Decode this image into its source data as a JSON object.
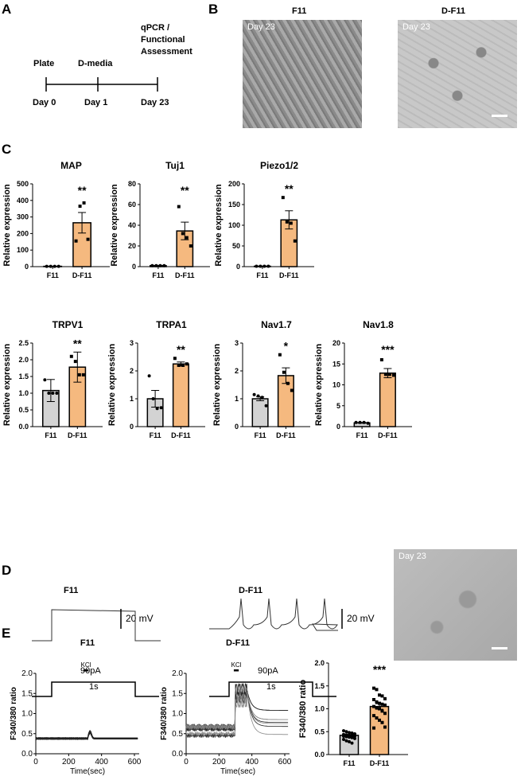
{
  "panels": {
    "a": "A",
    "b": "B",
    "c": "C",
    "d": "D",
    "e": "E"
  },
  "timeline": {
    "events": [
      "Plate",
      "D-media"
    ],
    "final_event": [
      "qPCR /",
      "Functional",
      "Assessment"
    ],
    "days": [
      "Day 0",
      "Day 1",
      "Day 23"
    ]
  },
  "micrographs": {
    "f11_title": "F11",
    "df11_title": "D-F11",
    "day_label": "Day 23"
  },
  "colors": {
    "f11_bar": "#d3d3d3",
    "df11_bar": "#f5b97f",
    "axis": "#000000"
  },
  "chart_data": [
    {
      "type": "bar",
      "title": "MAP",
      "ylabel": "Relative expression",
      "categories": [
        "F11",
        "D-F11"
      ],
      "ylim": [
        0,
        500
      ],
      "yticks": [
        "0",
        "100",
        "200",
        "300",
        "400",
        "500"
      ],
      "values": [
        2,
        265
      ],
      "errors": [
        0.5,
        62
      ],
      "points": [
        [
          2,
          2,
          2,
          2
        ],
        [
          155,
          365,
          385,
          165
        ]
      ],
      "significance": "**"
    },
    {
      "type": "bar",
      "title": "Tuj1",
      "ylabel": "Relative expression",
      "categories": [
        "F11",
        "D-F11"
      ],
      "ylim": [
        0,
        80
      ],
      "yticks": [
        "0",
        "20",
        "40",
        "60",
        "80"
      ],
      "values": [
        1,
        34.5
      ],
      "errors": [
        0.2,
        8.5
      ],
      "points": [
        [
          1,
          1,
          1,
          1
        ],
        [
          58,
          32,
          28,
          20
        ]
      ],
      "significance": "**"
    },
    {
      "type": "bar",
      "title": "Piezo1/2",
      "ylabel": "Relative expression",
      "categories": [
        "F11",
        "D-F11"
      ],
      "ylim": [
        0,
        200
      ],
      "yticks": [
        "0",
        "50",
        "100",
        "150",
        "200"
      ],
      "values": [
        1,
        113
      ],
      "errors": [
        0.3,
        22
      ],
      "points": [
        [
          1,
          1,
          1,
          1
        ],
        [
          167,
          108,
          105,
          62
        ]
      ],
      "significance": "**"
    },
    {
      "type": "bar",
      "title": "TRPV1",
      "ylabel": "Relative expression",
      "categories": [
        "F11",
        "D-F11"
      ],
      "ylim": [
        0,
        2.5
      ],
      "yticks": [
        "0.0",
        "0.5",
        "1.0",
        "1.5",
        "2.0",
        "2.5"
      ],
      "values": [
        1.08,
        1.78
      ],
      "errors": [
        0.33,
        0.45
      ],
      "points": [
        [
          1.4,
          1.0,
          1.0,
          1.0
        ],
        [
          2.1,
          1.95,
          1.55,
          1.55
        ]
      ],
      "significance": "**"
    },
    {
      "type": "bar",
      "title": "TRPA1",
      "ylabel": "Relative expression",
      "categories": [
        "F11",
        "D-F11"
      ],
      "ylim": [
        0,
        3
      ],
      "yticks": [
        "0",
        "1",
        "2",
        "3"
      ],
      "values": [
        1.0,
        2.25
      ],
      "errors": [
        0.3,
        0.07
      ],
      "points": [
        [
          1.82,
          1.0,
          0.65,
          0.68
        ],
        [
          2.45,
          2.2,
          2.2,
          2.25
        ]
      ],
      "significance": "**"
    },
    {
      "type": "bar",
      "title": "Nav1.7",
      "ylabel": "Relative expression",
      "categories": [
        "F11",
        "D-F11"
      ],
      "ylim": [
        0,
        3
      ],
      "yticks": [
        "0",
        "1",
        "2",
        "3"
      ],
      "values": [
        1.0,
        1.83
      ],
      "errors": [
        0.07,
        0.28
      ],
      "points": [
        [
          1.15,
          1.1,
          1.05,
          0.75
        ],
        [
          2.58,
          1.95,
          1.55,
          1.3
        ]
      ],
      "significance": "*"
    },
    {
      "type": "bar",
      "title": "Nav1.8",
      "ylabel": "Relative expression",
      "categories": [
        "F11",
        "D-F11"
      ],
      "ylim": [
        0,
        20
      ],
      "yticks": [
        "0",
        "5",
        "10",
        "15",
        "20"
      ],
      "values": [
        0.9,
        12.8
      ],
      "errors": [
        0.1,
        1.1
      ],
      "points": [
        [
          1.0,
          1.0,
          1.0,
          0.8
        ],
        [
          16,
          12.5,
          12.5,
          12.3
        ]
      ],
      "significance": "***"
    },
    {
      "type": "line",
      "title": "F11",
      "xlabel": "Time(sec)",
      "ylabel": "F340/380 ratio",
      "xlim": [
        0,
        620
      ],
      "ylim": [
        0,
        2.0
      ],
      "xticks": [
        "0",
        "200",
        "400",
        "600"
      ],
      "yticks": [
        "0.0",
        "0.5",
        "1.0",
        "1.5",
        "2.0"
      ],
      "annotation": "KCl",
      "stimulus_time": [
        290,
        320
      ],
      "baseline": 0.38,
      "peak": 0.6,
      "peak_time": 330
    },
    {
      "type": "line",
      "title": "D-F11",
      "xlabel": "Time(sec)",
      "ylabel": "F340/380 ratio",
      "xlim": [
        0,
        620
      ],
      "ylim": [
        0,
        2.0
      ],
      "xticks": [
        "0",
        "200",
        "400",
        "600"
      ],
      "yticks": [
        "0.0",
        "0.5",
        "1.0",
        "1.5",
        "2.0"
      ],
      "annotation": "KCl",
      "stimulus_time": [
        290,
        320
      ],
      "baseline": 0.65,
      "peak": 1.6,
      "peak_time": 310,
      "final_values": [
        1.08,
        0.85,
        0.78,
        0.75,
        0.68,
        0.48
      ]
    },
    {
      "type": "bar",
      "title": "",
      "ylabel": "F340/380 ratio",
      "categories": [
        "F11",
        "D-F11"
      ],
      "ylim": [
        0,
        2.0
      ],
      "yticks": [
        "0.0",
        "0.5",
        "1.0",
        "1.5",
        "2.0"
      ],
      "values": [
        0.42,
        1.05
      ],
      "errors": [
        0.02,
        0.06
      ],
      "points": [
        [
          0.52,
          0.5,
          0.48,
          0.47,
          0.45,
          0.44,
          0.43,
          0.42,
          0.41,
          0.4,
          0.4,
          0.39,
          0.38,
          0.37,
          0.35,
          0.33,
          0.3,
          0.28,
          0.25,
          0.45
        ],
        [
          1.45,
          1.42,
          1.3,
          1.28,
          1.22,
          1.2,
          1.15,
          1.12,
          1.1,
          1.08,
          1.05,
          1.02,
          1.0,
          0.95,
          0.9,
          0.85,
          0.8,
          0.75,
          0.7,
          0.6,
          0.58
        ]
      ],
      "significance": "***"
    }
  ],
  "ephys": {
    "f11_title": "F11",
    "df11_title": "D-F11",
    "scale_label": "20 mV",
    "current_label": "90pA",
    "duration_label": "1s"
  }
}
